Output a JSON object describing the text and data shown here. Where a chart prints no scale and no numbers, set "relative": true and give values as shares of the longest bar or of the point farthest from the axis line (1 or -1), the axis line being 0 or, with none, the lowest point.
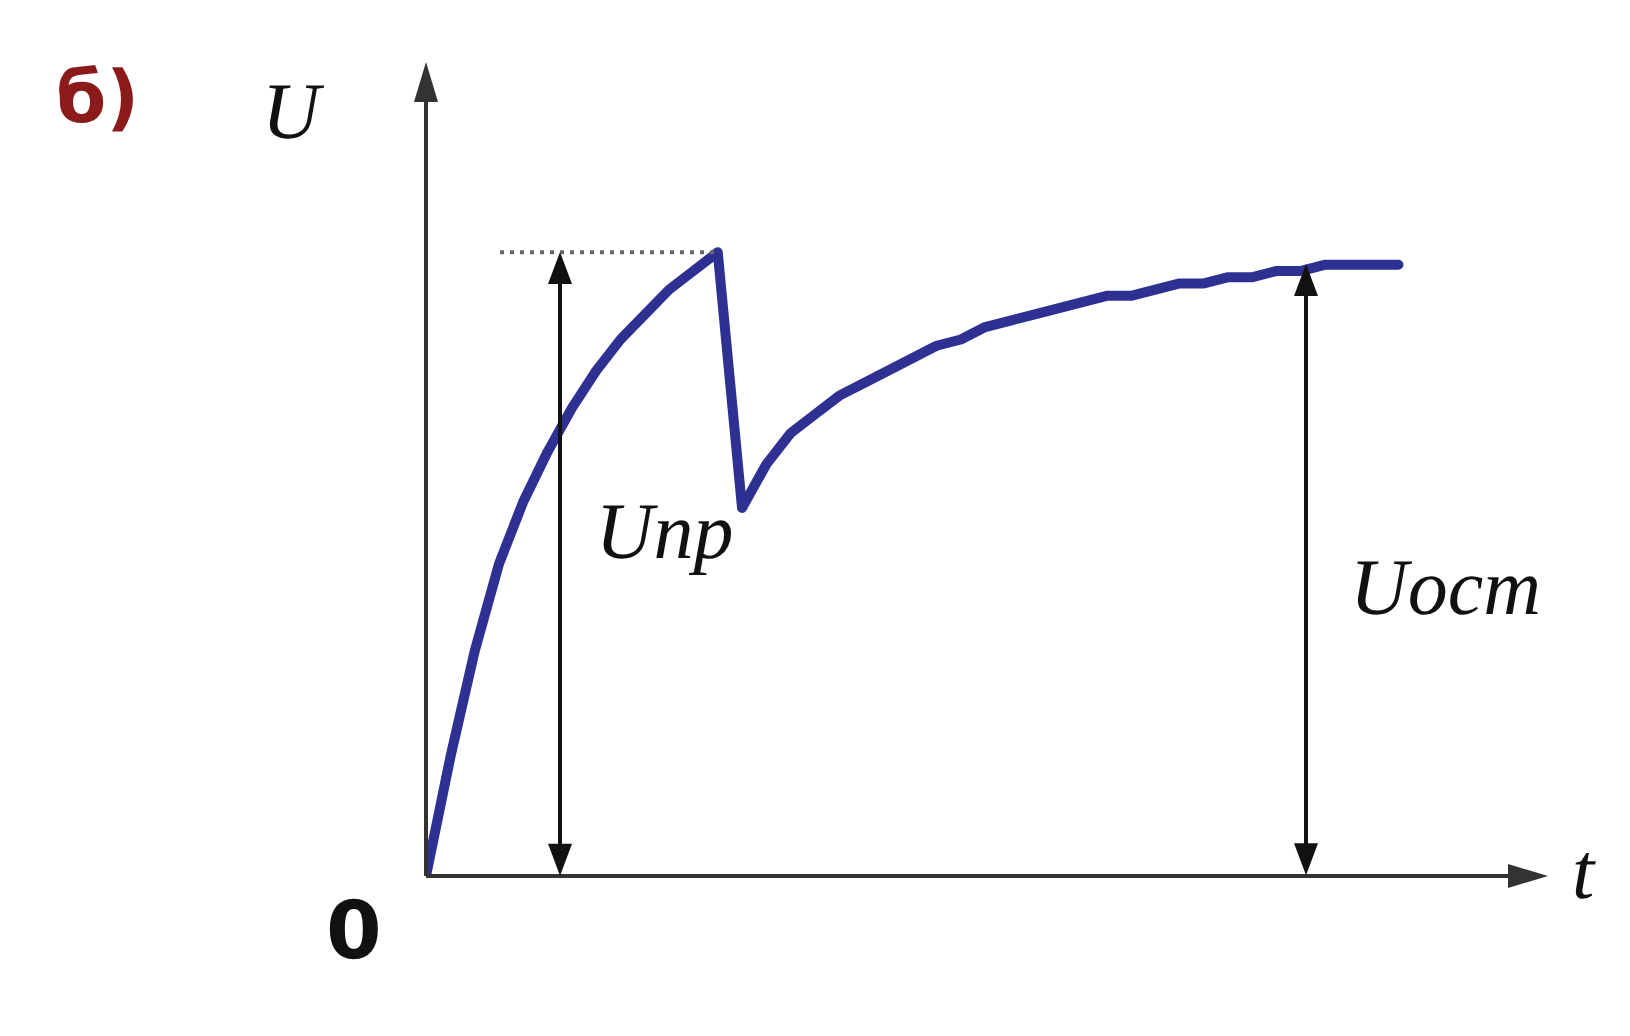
{
  "chart_data": {
    "type": "line",
    "title": "б)",
    "xlabel": "t",
    "ylabel": "U",
    "relative": true,
    "color": "#2e3192",
    "categories": [
      null,
      null,
      null,
      null,
      null,
      null,
      null,
      null,
      null,
      null,
      null,
      null,
      null,
      null,
      null,
      null,
      null,
      null,
      null,
      null,
      null,
      null,
      null,
      null,
      null,
      null,
      null,
      null,
      null,
      null,
      null,
      null,
      null,
      null,
      null,
      null,
      null,
      null,
      null,
      null,
      null
    ],
    "values": [
      0,
      0.19,
      0.36,
      0.5,
      0.6,
      0.68,
      0.75,
      0.81,
      0.86,
      0.9,
      0.94,
      0.97,
      1,
      0.59,
      0.66,
      0.71,
      0.74,
      0.77,
      0.79,
      0.81,
      0.83,
      0.85,
      0.86,
      0.88,
      0.89,
      0.9,
      0.91,
      0.92,
      0.93,
      0.93,
      0.94,
      0.95,
      0.95,
      0.96,
      0.96,
      0.97,
      0.97,
      0.98,
      0.98,
      0.98,
      0.98
    ],
    "ref_lines": [
      {
        "axis": "y",
        "value": 1,
        "color": "#666666",
        "line_style": "dotted"
      }
    ],
    "annotations": [
      "Uпр",
      "Uост",
      "0"
    ]
  }
}
